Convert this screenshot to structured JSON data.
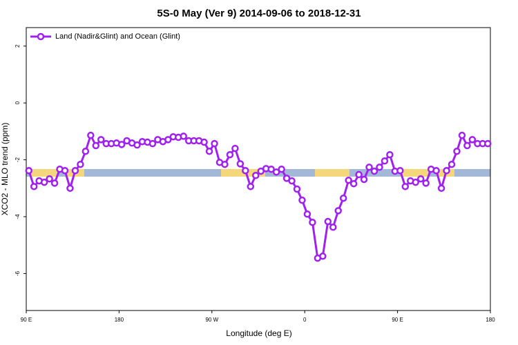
{
  "chart_data": {
    "type": "line",
    "title": "5S-0 May (Ver 9)   2014-09-06 to 2018-12-31",
    "x_label": "Longitude (deg E)",
    "y_label": "XCO2 - MLO trend (ppm)",
    "legend_position": "top-left",
    "xlim": [
      90,
      540
    ],
    "xticks": [
      {
        "value": 90,
        "label": "90 E"
      },
      180,
      {
        "value": 270,
        "label": "90 W"
      },
      {
        "value": 360,
        "label": "0"
      },
      {
        "value": 450,
        "label": "90 E"
      },
      {
        "value": 540,
        "label": "180"
      }
    ],
    "ylim": [
      -7.3,
      2.65
    ],
    "yticks": [
      -6,
      -4,
      -2,
      0,
      2
    ],
    "x": [
      92.5,
      97.5,
      102.5,
      107.5,
      112.5,
      117.5,
      122.5,
      127.5,
      132.5,
      137.5,
      142.5,
      147.5,
      152.5,
      157.5,
      162.5,
      167.5,
      172.5,
      177.5,
      182.5,
      187.5,
      192.5,
      197.5,
      202.5,
      207.5,
      212.5,
      217.5,
      222.5,
      227.5,
      232.5,
      237.5,
      242.5,
      247.5,
      252.5,
      257.5,
      262.5,
      267.5,
      272.5,
      277.5,
      282.5,
      287.5,
      292.5,
      297.5,
      302.5,
      307.5,
      312.5,
      317.5,
      322.5,
      327.5,
      332.5,
      337.5,
      342.5,
      347.5,
      352.5,
      357.5,
      362.5,
      367.5,
      372.5,
      377.5,
      382.5,
      387.5,
      392.5,
      397.5,
      402.5,
      407.5,
      412.5,
      417.5,
      422.5,
      427.5,
      432.5,
      437.5,
      442.5,
      447.5,
      452.5,
      457.5,
      462.5,
      467.5,
      472.5,
      477.5,
      482.5,
      487.5,
      492.5,
      497.5,
      502.5,
      507.5,
      512.5,
      517.5,
      522.5,
      527.5,
      532.5,
      537.5
    ],
    "series": [
      {
        "name": "Land (Nadir&Glint) and Ocean (Glint)",
        "color": "#a020f0",
        "values": [
          -2.38,
          -2.94,
          -2.74,
          -2.79,
          -2.67,
          -2.82,
          -2.33,
          -2.38,
          -3.0,
          -2.38,
          -2.16,
          -1.7,
          -1.14,
          -1.5,
          -1.29,
          -1.43,
          -1.43,
          -1.41,
          -1.46,
          -1.33,
          -1.41,
          -1.48,
          -1.36,
          -1.38,
          -1.43,
          -1.29,
          -1.36,
          -1.29,
          -1.19,
          -1.21,
          -1.17,
          -1.33,
          -1.33,
          -1.33,
          -1.38,
          -1.7,
          -1.43,
          -2.09,
          -2.16,
          -1.82,
          -1.6,
          -2.14,
          -2.38,
          -2.94,
          -2.55,
          -2.4,
          -2.31,
          -2.33,
          -2.43,
          -2.33,
          -2.65,
          -2.74,
          -3.03,
          -3.42,
          -3.91,
          -4.2,
          -5.46,
          -5.39,
          -4.17,
          -4.37,
          -3.79,
          -3.35,
          -2.72,
          -2.84,
          -2.52,
          -2.69,
          -2.26,
          -2.4,
          -2.26,
          -2.04,
          -1.82,
          -2.4,
          -2.38,
          -2.94,
          -2.74,
          -2.79,
          -2.67,
          -2.82,
          -2.33,
          -2.38,
          -3.0,
          -2.38,
          -2.16,
          -1.7,
          -1.14,
          -1.5,
          -1.29,
          -1.43,
          -1.43,
          -1.43
        ]
      }
    ]
  }
}
